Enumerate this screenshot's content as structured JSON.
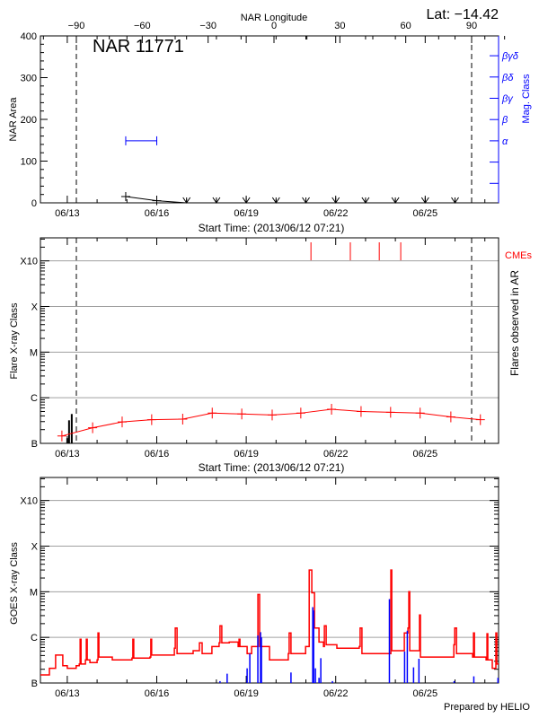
{
  "header": {
    "lat_label": "Lat: −14.42"
  },
  "footer": {
    "credit": "Prepared by HELIO"
  },
  "colors": {
    "axis": "#000000",
    "grid": "#a0a0a0",
    "flare_curve": "#ff0000",
    "goes_flux": "#ff0000",
    "goes_events": "#0000ff",
    "mag_class": "#0000ff",
    "cme": "#ff0000"
  },
  "chart_data": [
    {
      "type": "line",
      "title": "NAR 11771",
      "xlabel": "Start Time: (2013/06/12 07:21)",
      "ylabel": "NAR Area",
      "top_xlabel": "NAR Longitude",
      "right_ylabel": "Mag. Class",
      "x_tick_labels": [
        {
          "day": 13,
          "label": "06/13"
        },
        {
          "day": 16,
          "label": "06/16"
        },
        {
          "day": 19,
          "label": "06/19"
        },
        {
          "day": 22,
          "label": "06/22"
        },
        {
          "day": 25,
          "label": "06/25"
        }
      ],
      "xlim_day_of_june_2013": [
        12.1,
        27.46
      ],
      "ylim": [
        0,
        400
      ],
      "y_ticks": [
        0,
        100,
        200,
        300,
        400
      ],
      "top_ticks": [
        -90,
        -60,
        -30,
        0,
        30,
        60,
        90
      ],
      "limb_longitudes": [
        -90,
        90
      ],
      "mag_class_ticks": [
        "",
        "",
        "α",
        "β",
        "βγ",
        "βδ",
        "βγδ"
      ],
      "area_series": [
        {
          "day": 14.96,
          "area": 15,
          "upper_limit": false
        },
        {
          "day": 16.0,
          "area": 5,
          "upper_limit": false
        },
        {
          "day": 17.0,
          "area": 0,
          "upper_limit": true
        },
        {
          "day": 18.0,
          "area": 0,
          "upper_limit": true
        },
        {
          "day": 19.0,
          "area": 0,
          "upper_limit": true
        },
        {
          "day": 20.0,
          "area": 0,
          "upper_limit": true
        },
        {
          "day": 21.0,
          "area": 0,
          "upper_limit": true
        },
        {
          "day": 22.0,
          "area": 0,
          "upper_limit": true
        },
        {
          "day": 23.0,
          "area": 0,
          "upper_limit": true
        },
        {
          "day": 24.0,
          "area": 0,
          "upper_limit": true
        },
        {
          "day": 25.0,
          "area": 0,
          "upper_limit": true
        },
        {
          "day": 26.0,
          "area": 0,
          "upper_limit": true
        }
      ],
      "mag_class_series": [
        {
          "day": 14.96,
          "class": "α"
        },
        {
          "day": 16.0,
          "class": "α"
        }
      ]
    },
    {
      "type": "line",
      "xlabel": "Start Time: (2013/06/12 07:21)",
      "ylabel": "Flare X-ray Class",
      "right_ylabel": "Flares observed in AR",
      "cme_label": "CMEs",
      "y_scale": "log",
      "ylim": [
        1e-07,
        0.0032
      ],
      "y_ticks": [
        {
          "value": 1e-07,
          "label": "B"
        },
        {
          "value": 1e-06,
          "label": "C"
        },
        {
          "value": 1e-05,
          "label": "M"
        },
        {
          "value": 0.0001,
          "label": "X"
        },
        {
          "value": 0.001,
          "label": "X10"
        }
      ],
      "grid": true,
      "limb_longitudes_days": [
        13.3,
        26.55
      ],
      "background_series": [
        [
          12.82,
          1.45e-07
        ],
        [
          13.85,
          2.2e-07
        ],
        [
          14.84,
          2.95e-07
        ],
        [
          15.83,
          3.3e-07
        ],
        [
          16.87,
          3.4e-07
        ],
        [
          17.86,
          4.6e-07
        ],
        [
          18.85,
          4.4e-07
        ],
        [
          19.87,
          4.2e-07
        ],
        [
          20.83,
          4.6e-07
        ],
        [
          21.86,
          5.6e-07
        ],
        [
          22.85,
          5e-07
        ],
        [
          23.84,
          4.8e-07
        ],
        [
          24.83,
          4.6e-07
        ],
        [
          25.86,
          3.8e-07
        ],
        [
          26.85,
          3.3e-07
        ]
      ],
      "flares": [
        [
          13.0,
          1.3e-07
        ],
        [
          13.06,
          3.2e-07
        ],
        [
          13.15,
          4.4e-07
        ]
      ],
      "cmes_days": [
        21.17,
        22.49,
        23.46,
        24.18
      ]
    },
    {
      "type": "line",
      "ylabel": "GOES X-ray Class",
      "y_scale": "log",
      "ylim": [
        1e-07,
        0.0032
      ],
      "y_ticks": [
        {
          "value": 1e-07,
          "label": "B"
        },
        {
          "value": 1e-06,
          "label": "C"
        },
        {
          "value": 1e-05,
          "label": "M"
        },
        {
          "value": 0.0001,
          "label": "X"
        },
        {
          "value": 0.001,
          "label": "X10"
        }
      ],
      "grid": true,
      "goes_flux": [
        [
          12.1,
          1.5e-07
        ],
        [
          12.4,
          2.1e-07
        ],
        [
          12.55,
          2.1e-07
        ],
        [
          12.61,
          4.1e-07
        ],
        [
          12.7,
          4.1e-07
        ],
        [
          12.85,
          2.4e-07
        ],
        [
          13.0,
          2.1e-07
        ],
        [
          13.3,
          2.4e-07
        ],
        [
          13.4,
          2.6e-07
        ],
        [
          13.43,
          9.1e-07
        ],
        [
          13.46,
          2.6e-07
        ],
        [
          13.61,
          3.2e-07
        ],
        [
          13.64,
          9.1e-07
        ],
        [
          13.67,
          3.2e-07
        ],
        [
          13.76,
          2.8e-07
        ],
        [
          13.91,
          2.8e-07
        ],
        [
          14.0,
          3.2e-07
        ],
        [
          14.03,
          1.25e-06
        ],
        [
          14.06,
          3.7e-07
        ],
        [
          14.3,
          3.7e-07
        ],
        [
          14.51,
          3.2e-07
        ],
        [
          14.96,
          3.2e-07
        ],
        [
          15.17,
          3.5e-07
        ],
        [
          15.2,
          9.1e-07
        ],
        [
          15.23,
          3.5e-07
        ],
        [
          15.56,
          3.5e-07
        ],
        [
          15.77,
          3.7e-07
        ],
        [
          15.8,
          9.1e-07
        ],
        [
          15.83,
          4.1e-07
        ],
        [
          16.47,
          4.1e-07
        ],
        [
          16.59,
          5.8e-07
        ],
        [
          16.62,
          1.6e-06
        ],
        [
          16.68,
          4.4e-07
        ],
        [
          17.22,
          5.1e-07
        ],
        [
          17.43,
          7.6e-07
        ],
        [
          17.52,
          4.4e-07
        ],
        [
          17.85,
          6.3e-07
        ],
        [
          18.09,
          7.6e-07
        ],
        [
          18.12,
          1.8e-06
        ],
        [
          18.18,
          7.6e-07
        ],
        [
          18.43,
          7.9e-07
        ],
        [
          18.73,
          6.3e-07
        ],
        [
          18.76,
          9.1e-07
        ],
        [
          18.79,
          6.3e-07
        ],
        [
          19.03,
          4.4e-07
        ],
        [
          19.18,
          6.3e-07
        ],
        [
          19.36,
          6.3e-07
        ],
        [
          19.39,
          8.7e-06
        ],
        [
          19.45,
          6.3e-07
        ],
        [
          19.78,
          3.2e-07
        ],
        [
          20.08,
          3.2e-07
        ],
        [
          20.41,
          4.4e-07
        ],
        [
          20.44,
          1.25e-06
        ],
        [
          20.5,
          4.4e-07
        ],
        [
          20.99,
          6.3e-07
        ],
        [
          21.08,
          6.3e-07
        ],
        [
          21.11,
          3e-05
        ],
        [
          21.2,
          9.5e-06
        ],
        [
          21.29,
          1.6e-06
        ],
        [
          21.44,
          7.9e-07
        ],
        [
          21.59,
          6.3e-07
        ],
        [
          21.62,
          1.8e-06
        ],
        [
          21.68,
          6.9e-07
        ],
        [
          22.04,
          5.8e-07
        ],
        [
          22.79,
          6.3e-07
        ],
        [
          22.82,
          1.6e-06
        ],
        [
          22.88,
          4.4e-07
        ],
        [
          23.7,
          4.4e-07
        ],
        [
          23.82,
          4.4e-07
        ],
        [
          23.85,
          3e-05
        ],
        [
          23.88,
          5.1e-07
        ],
        [
          24.3,
          1.25e-06
        ],
        [
          24.42,
          1.6e-06
        ],
        [
          24.45,
          1e-05
        ],
        [
          24.48,
          5.1e-07
        ],
        [
          24.78,
          5.1e-07
        ],
        [
          24.81,
          3.1e-06
        ],
        [
          24.84,
          3.7e-07
        ],
        [
          25.2,
          3.7e-07
        ],
        [
          25.8,
          3.7e-07
        ],
        [
          25.96,
          6.9e-07
        ],
        [
          25.99,
          1.6e-06
        ],
        [
          26.05,
          4.4e-07
        ],
        [
          26.59,
          3.7e-07
        ],
        [
          26.62,
          1.25e-06
        ],
        [
          26.65,
          3.7e-07
        ],
        [
          27.04,
          3.2e-07
        ],
        [
          27.07,
          1.2e-06
        ],
        [
          27.1,
          3.2e-07
        ],
        [
          27.25,
          2.1e-07
        ],
        [
          27.37,
          1.25e-06
        ],
        [
          27.4,
          2.6e-07
        ],
        [
          27.46,
          2.6e-07
        ]
      ],
      "goes_events": [
        [
          18.12,
          1.1e-07
        ],
        [
          18.36,
          1.6e-07
        ],
        [
          19.03,
          2.1e-07
        ],
        [
          19.12,
          4.4e-07
        ],
        [
          19.39,
          1.1e-06
        ],
        [
          19.48,
          1.3e-06
        ],
        [
          19.51,
          1e-06
        ],
        [
          20.5,
          1.7e-07
        ],
        [
          21.23,
          4.6e-06
        ],
        [
          21.26,
          3.9e-06
        ],
        [
          21.32,
          2.1e-07
        ],
        [
          21.44,
          1.3e-07
        ],
        [
          21.5,
          3.5e-07
        ],
        [
          21.89,
          1.1e-07
        ],
        [
          23.8,
          6.9e-06
        ],
        [
          24.31,
          4.9e-07
        ],
        [
          24.4,
          1.4e-06
        ],
        [
          24.61,
          2.2e-07
        ],
        [
          24.79,
          3.4e-07
        ],
        [
          25.97,
          1.1e-07
        ],
        [
          26.63,
          1.4e-07
        ],
        [
          27.44,
          1.3e-07
        ]
      ]
    }
  ]
}
